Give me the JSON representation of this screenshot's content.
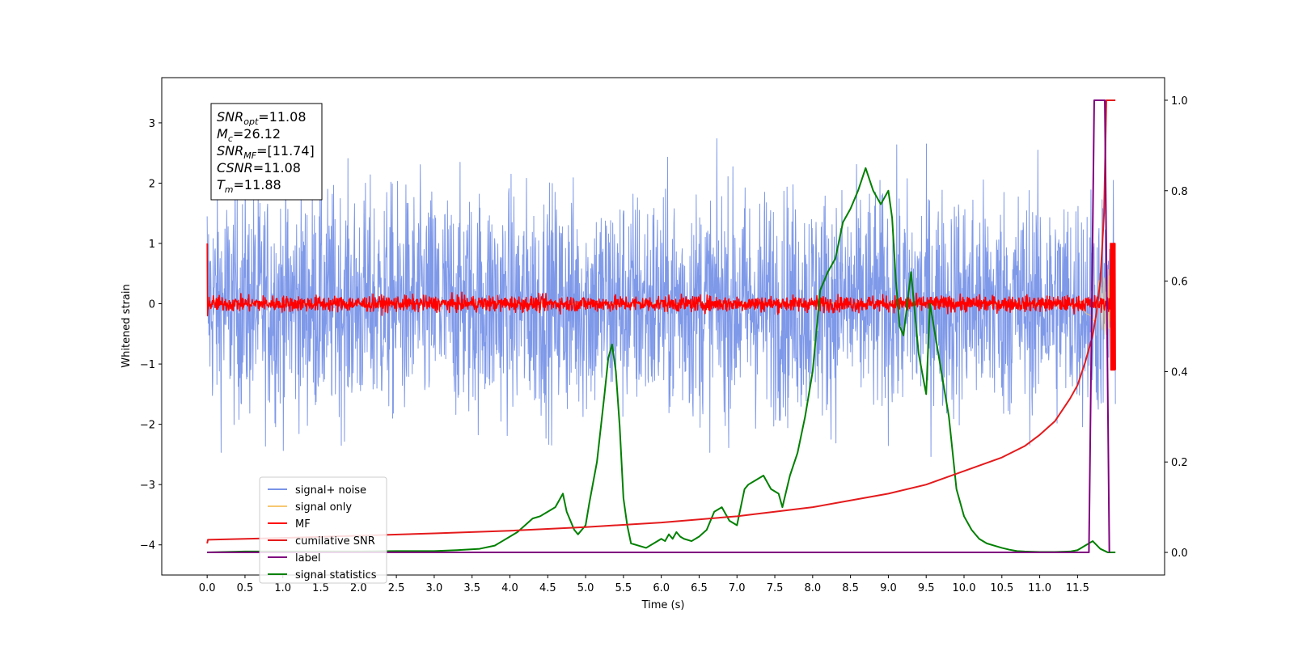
{
  "chart_data": {
    "type": "line",
    "xlabel": "Time (s)",
    "ylabel": "Whitened strain",
    "xlim": [
      -0.6,
      12.65
    ],
    "ylim": [
      -4.5,
      3.75
    ],
    "ylim_right": [
      -0.05,
      1.05
    ],
    "xticks": [
      0.0,
      0.5,
      1.0,
      1.5,
      2.0,
      2.5,
      3.0,
      3.5,
      4.0,
      4.5,
      5.0,
      5.5,
      6.0,
      6.5,
      7.0,
      7.5,
      8.0,
      8.5,
      9.0,
      9.5,
      10.0,
      10.5,
      11.0,
      11.5
    ],
    "xtick_labels": [
      "0.0",
      "0.5",
      "1.0",
      "1.5",
      "2.0",
      "2.5",
      "3.0",
      "3.5",
      "4.0",
      "4.5",
      "5.0",
      "5.5",
      "6.0",
      "6.5",
      "7.0",
      "7.5",
      "8.0",
      "8.5",
      "9.0",
      "9.5",
      "10.0",
      "10.5",
      "11.0",
      "11.5"
    ],
    "yticks_left": [
      3,
      2,
      1,
      0,
      -1,
      -2,
      -3,
      -4
    ],
    "ytick_labels_left": [
      "3",
      "2",
      "1",
      "0",
      "−1",
      "−2",
      "−3",
      "−4"
    ],
    "yticks_right": [
      1.0,
      0.8,
      0.6,
      0.4,
      0.2,
      0.0
    ],
    "ytick_labels_right": [
      "1.0",
      "0.8",
      "0.6",
      "0.4",
      "0.2",
      "0.0"
    ],
    "grid": false,
    "legend_position": "lower-left",
    "legend": [
      {
        "label": "signal+ noise",
        "color": "#7893e8"
      },
      {
        "label": "signal only",
        "color": "#f7c870"
      },
      {
        "label": "MF",
        "color": "#ff0000"
      },
      {
        "label": "cumilative SNR",
        "color": "#e41a1c"
      },
      {
        "label": "label",
        "color": "#800080"
      },
      {
        "label": "signal statistics",
        "color": "#008000"
      }
    ],
    "info_box": [
      {
        "main": "SNR",
        "sub": "opt",
        "value": "=11.08"
      },
      {
        "main": "M",
        "sub": "c",
        "value": "=26.12"
      },
      {
        "main": "SNR",
        "sub": "MF",
        "value": "=[11.74]"
      },
      {
        "main": "CSNR",
        "sub": "",
        "value": "=11.08"
      },
      {
        "main": "T",
        "sub": "m",
        "value": "=11.88"
      }
    ],
    "series": [
      {
        "name": "signal statistics",
        "axis": "right",
        "color": "#008000",
        "x": [
          0.0,
          0.5,
          1.0,
          1.5,
          2.0,
          2.5,
          3.0,
          3.3,
          3.6,
          3.8,
          3.9,
          4.0,
          4.1,
          4.2,
          4.3,
          4.4,
          4.5,
          4.6,
          4.7,
          4.75,
          4.85,
          4.9,
          5.0,
          5.05,
          5.15,
          5.25,
          5.3,
          5.35,
          5.4,
          5.45,
          5.5,
          5.55,
          5.6,
          5.7,
          5.8,
          5.9,
          6.0,
          6.05,
          6.1,
          6.15,
          6.2,
          6.25,
          6.3,
          6.4,
          6.5,
          6.6,
          6.7,
          6.8,
          6.9,
          7.0,
          7.1,
          7.15,
          7.25,
          7.35,
          7.45,
          7.55,
          7.6,
          7.7,
          7.8,
          7.9,
          8.0,
          8.1,
          8.2,
          8.3,
          8.4,
          8.5,
          8.6,
          8.7,
          8.8,
          8.9,
          9.0,
          9.05,
          9.1,
          9.15,
          9.2,
          9.3,
          9.4,
          9.5,
          9.55,
          9.6,
          9.7,
          9.8,
          9.9,
          10.0,
          10.1,
          10.2,
          10.3,
          10.4,
          10.5,
          10.6,
          10.7,
          10.8,
          11.0,
          11.2,
          11.4,
          11.5,
          11.6,
          11.7,
          11.8,
          11.9,
          12.0
        ],
        "y": [
          0.0,
          0.002,
          0.002,
          0.002,
          0.002,
          0.003,
          0.003,
          0.005,
          0.008,
          0.015,
          0.025,
          0.035,
          0.045,
          0.06,
          0.075,
          0.08,
          0.09,
          0.1,
          0.13,
          0.09,
          0.05,
          0.04,
          0.06,
          0.11,
          0.2,
          0.35,
          0.43,
          0.46,
          0.4,
          0.28,
          0.12,
          0.06,
          0.02,
          0.015,
          0.01,
          0.02,
          0.03,
          0.025,
          0.04,
          0.03,
          0.045,
          0.035,
          0.03,
          0.025,
          0.035,
          0.05,
          0.09,
          0.1,
          0.07,
          0.06,
          0.14,
          0.15,
          0.16,
          0.17,
          0.14,
          0.13,
          0.1,
          0.17,
          0.22,
          0.3,
          0.4,
          0.58,
          0.62,
          0.65,
          0.73,
          0.76,
          0.8,
          0.85,
          0.8,
          0.77,
          0.8,
          0.74,
          0.6,
          0.5,
          0.48,
          0.62,
          0.44,
          0.35,
          0.55,
          0.5,
          0.4,
          0.3,
          0.14,
          0.08,
          0.05,
          0.03,
          0.02,
          0.015,
          0.01,
          0.006,
          0.003,
          0.002,
          0.001,
          0.001,
          0.002,
          0.005,
          0.015,
          0.025,
          0.008,
          0.0,
          0.0
        ]
      },
      {
        "name": "cumilative SNR",
        "axis": "right",
        "color": "#e41a1c",
        "x": [
          0.0,
          0.01,
          1.0,
          2.0,
          3.0,
          4.0,
          5.0,
          6.0,
          7.0,
          7.5,
          8.0,
          8.5,
          9.0,
          9.5,
          10.0,
          10.5,
          10.8,
          11.0,
          11.2,
          11.4,
          11.5,
          11.6,
          11.7,
          11.75,
          11.8,
          11.85,
          11.88,
          11.9,
          12.0
        ],
        "y": [
          0.02,
          0.028,
          0.032,
          0.037,
          0.042,
          0.048,
          0.056,
          0.066,
          0.08,
          0.09,
          0.1,
          0.115,
          0.13,
          0.15,
          0.18,
          0.21,
          0.235,
          0.26,
          0.29,
          0.34,
          0.37,
          0.42,
          0.48,
          0.53,
          0.6,
          0.75,
          1.0,
          1.0,
          1.0
        ]
      },
      {
        "name": "label",
        "axis": "right",
        "color": "#800080",
        "x": [
          0.0,
          11.65,
          11.72,
          11.72,
          11.86,
          11.86,
          11.92
        ],
        "y": [
          0.0,
          0.0,
          1.0,
          1.0,
          1.0,
          1.0,
          0.0
        ]
      }
    ]
  }
}
